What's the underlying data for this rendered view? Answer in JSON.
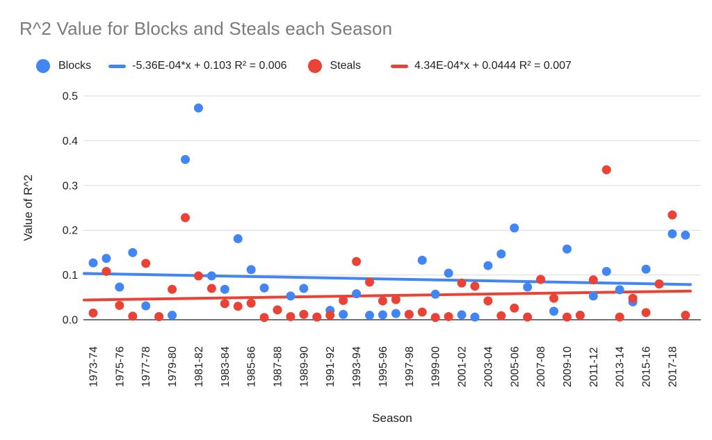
{
  "title": "R^2 Value for Blocks and Steals each Season",
  "legend": {
    "blocks_label": "Blocks",
    "blocks_trend_label": "-5.36E-04*x + 0.103 R² = 0.006",
    "steals_label": "Steals",
    "steals_trend_label": "4.34E-04*x + 0.0444 R² = 0.007"
  },
  "colors": {
    "blocks": "#4285F4",
    "steals": "#EA4335",
    "gridline": "#DADADA",
    "axis_line": "#424242",
    "tick_text": "#202124",
    "title_text": "#7B7B7B"
  },
  "chart_data": {
    "type": "scatter",
    "title": "R^2 Value for Blocks and Steals each Season",
    "xlabel": "Season",
    "ylabel": "Value of R^2",
    "ylim": [
      0.0,
      0.5
    ],
    "ytick_labels": [
      "0.0",
      "0.1",
      "0.2",
      "0.3",
      "0.4",
      "0.5"
    ],
    "ytick_values": [
      0.0,
      0.1,
      0.2,
      0.3,
      0.4,
      0.5
    ],
    "grid": true,
    "legend_position": "top",
    "x_labels_every": 2,
    "categories": [
      "1973-74",
      "1974-75",
      "1975-76",
      "1976-77",
      "1977-78",
      "1978-79",
      "1979-80",
      "1980-81",
      "1981-82",
      "1982-83",
      "1983-84",
      "1984-85",
      "1985-86",
      "1986-87",
      "1987-88",
      "1988-89",
      "1989-90",
      "1990-91",
      "1991-92",
      "1992-93",
      "1993-94",
      "1994-95",
      "1995-96",
      "1996-97",
      "1997-98",
      "1998-99",
      "1999-00",
      "2000-01",
      "2001-02",
      "2002-03",
      "2003-04",
      "2004-05",
      "2005-06",
      "2006-07",
      "2007-08",
      "2008-09",
      "2009-10",
      "2010-11",
      "2011-12",
      "2012-13",
      "2013-14",
      "2014-15",
      "2015-16",
      "2016-17",
      "2017-18",
      "2018-19"
    ],
    "series": [
      {
        "name": "Blocks",
        "color": "#4285F4",
        "values": [
          0.127,
          0.137,
          0.073,
          0.15,
          0.031,
          0.007,
          0.01,
          0.358,
          0.473,
          0.098,
          0.068,
          0.181,
          0.112,
          0.071,
          0.022,
          0.053,
          0.07,
          0.006,
          0.021,
          0.012,
          0.058,
          0.01,
          0.011,
          0.014,
          0.012,
          0.133,
          0.057,
          0.104,
          0.011,
          0.006,
          0.121,
          0.147,
          0.205,
          0.073,
          0.09,
          0.019,
          0.158,
          0.01,
          0.053,
          0.108,
          0.067,
          0.04,
          0.113,
          0.08,
          0.192,
          0.189
        ]
      },
      {
        "name": "Steals",
        "color": "#EA4335",
        "values": [
          0.015,
          0.108,
          0.032,
          0.008,
          0.126,
          0.007,
          0.068,
          0.228,
          0.098,
          0.07,
          0.036,
          0.03,
          0.037,
          0.005,
          0.022,
          0.007,
          0.012,
          0.006,
          0.01,
          0.043,
          0.13,
          0.084,
          0.042,
          0.045,
          0.012,
          0.017,
          0.005,
          0.007,
          0.082,
          0.075,
          0.042,
          0.009,
          0.026,
          0.006,
          0.09,
          0.048,
          0.006,
          0.01,
          0.089,
          0.335,
          0.006,
          0.048,
          0.016,
          0.08,
          0.234,
          0.01
        ]
      }
    ],
    "trendlines": [
      {
        "series": "Blocks",
        "slope": -0.000536,
        "intercept": 0.103,
        "r2": 0.006,
        "label": "-5.36E-04*x + 0.103 R² = 0.006",
        "color": "#4285F4"
      },
      {
        "series": "Steals",
        "slope": 0.000434,
        "intercept": 0.0444,
        "r2": 0.007,
        "label": "4.34E-04*x + 0.0444 R² = 0.007",
        "color": "#EA4335"
      }
    ]
  }
}
